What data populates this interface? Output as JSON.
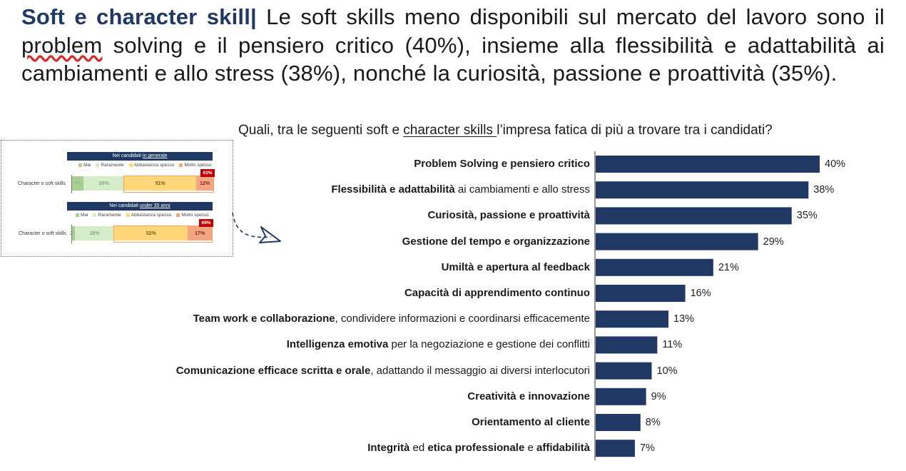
{
  "headline": {
    "strong": "Soft e character skill",
    "sep": "|",
    "part1": " Le soft skills meno disponibili sul mercato del lavoro sono il ",
    "squiggly": "problem",
    "part2": " solving e il pensiero critico (40%), insieme alla flessibilità e adattabilità ai cambiamenti e allo stress (38%), nonché la curiosità, passione e proattività (35%)."
  },
  "question": {
    "before": "Quali, tra le seguenti soft e ",
    "underlined": "character skills ",
    "after": "l’impresa fatica di più a trovare tra i candidati?"
  },
  "chart_data": [
    {
      "type": "bar",
      "orientation": "horizontal",
      "categories": [
        "Problem Solving e pensiero critico",
        "Flessibilità e adattabilità ai cambiamenti e allo stress",
        "Curiosità, passione e proattività",
        "Gestione del tempo e organizzazione",
        "Umiltà e apertura al feedback",
        "Capacità di apprendimento continuo",
        "Team work e collaborazione, condividere informazioni e coordinarsi efficacemente",
        "Intelligenza emotiva per la negoziazione e gestione dei conflitti",
        "Comunicazione efficace scritta e orale, adattando il messaggio ai diversi interlocutori",
        "Creatività e innovazione",
        "Orientamento al cliente",
        "Integrità ed etica professionale e affidabilità"
      ],
      "label_parts": [
        [
          {
            "t": "Problem Solving e pensiero critico",
            "b": true
          }
        ],
        [
          {
            "t": "Flessibilità e adattabilità",
            "b": true
          },
          {
            "t": " ai cambiamenti e allo stress",
            "b": false
          }
        ],
        [
          {
            "t": "Curiosità, passione e proattività",
            "b": true
          }
        ],
        [
          {
            "t": "Gestione del tempo e organizzazione",
            "b": true
          }
        ],
        [
          {
            "t": "Umiltà e apertura al feedback",
            "b": true
          }
        ],
        [
          {
            "t": "Capacità di apprendimento continuo",
            "b": true
          }
        ],
        [
          {
            "t": "Team work e collaborazione",
            "b": true
          },
          {
            "t": ", condividere informazioni e coordinarsi efficacemente",
            "b": false
          }
        ],
        [
          {
            "t": "Intelligenza emotiva",
            "b": true
          },
          {
            "t": " per la negoziazione e gestione dei conflitti",
            "b": false
          }
        ],
        [
          {
            "t": "Comunicazione efficace scritta e orale",
            "b": true
          },
          {
            "t": ", adattando il messaggio ai diversi interlocutori",
            "b": false
          }
        ],
        [
          {
            "t": "Creatività e innovazione",
            "b": true
          }
        ],
        [
          {
            "t": "Orientamento al cliente",
            "b": true
          }
        ],
        [
          {
            "t": "Integrità",
            "b": true
          },
          {
            "t": " ed ",
            "b": false
          },
          {
            "t": "etica professionale",
            "b": true
          },
          {
            "t": " e ",
            "b": false
          },
          {
            "t": "affidabilità",
            "b": true
          }
        ]
      ],
      "values": [
        40,
        38,
        35,
        29,
        21,
        16,
        13,
        11,
        10,
        9,
        8,
        7
      ],
      "value_labels": [
        "40%",
        "38%",
        "35%",
        "29%",
        "21%",
        "16%",
        "13%",
        "11%",
        "10%",
        "9%",
        "8%",
        "7%"
      ],
      "unit": "%",
      "bar_color": "#1f3864"
    },
    {
      "type": "bar",
      "orientation": "horizontal-stacked",
      "panels": [
        {
          "title_prefix": "Nei candidati ",
          "title_underlined": "in generale",
          "category": "Character o soft skills",
          "values": [
            8,
            29,
            51,
            12
          ],
          "labels": [
            "8%",
            "29%",
            "51%",
            "12%"
          ],
          "total_badge": "63%"
        },
        {
          "title_prefix": "Nei candidati ",
          "title_underlined": "under 35 anni",
          "category": "Character o soft skills",
          "values": [
            2,
            28,
            52,
            17
          ],
          "labels": [
            "2%",
            "28%",
            "52%",
            "17%"
          ],
          "total_badge": "69%"
        }
      ],
      "series": [
        "Mai",
        "Raramente",
        "Abbastanza spesso",
        "Molto spesso"
      ],
      "colors": [
        "#a9d18e",
        "#d4edc8",
        "#ffd77a",
        "#f4a582"
      ]
    }
  ]
}
